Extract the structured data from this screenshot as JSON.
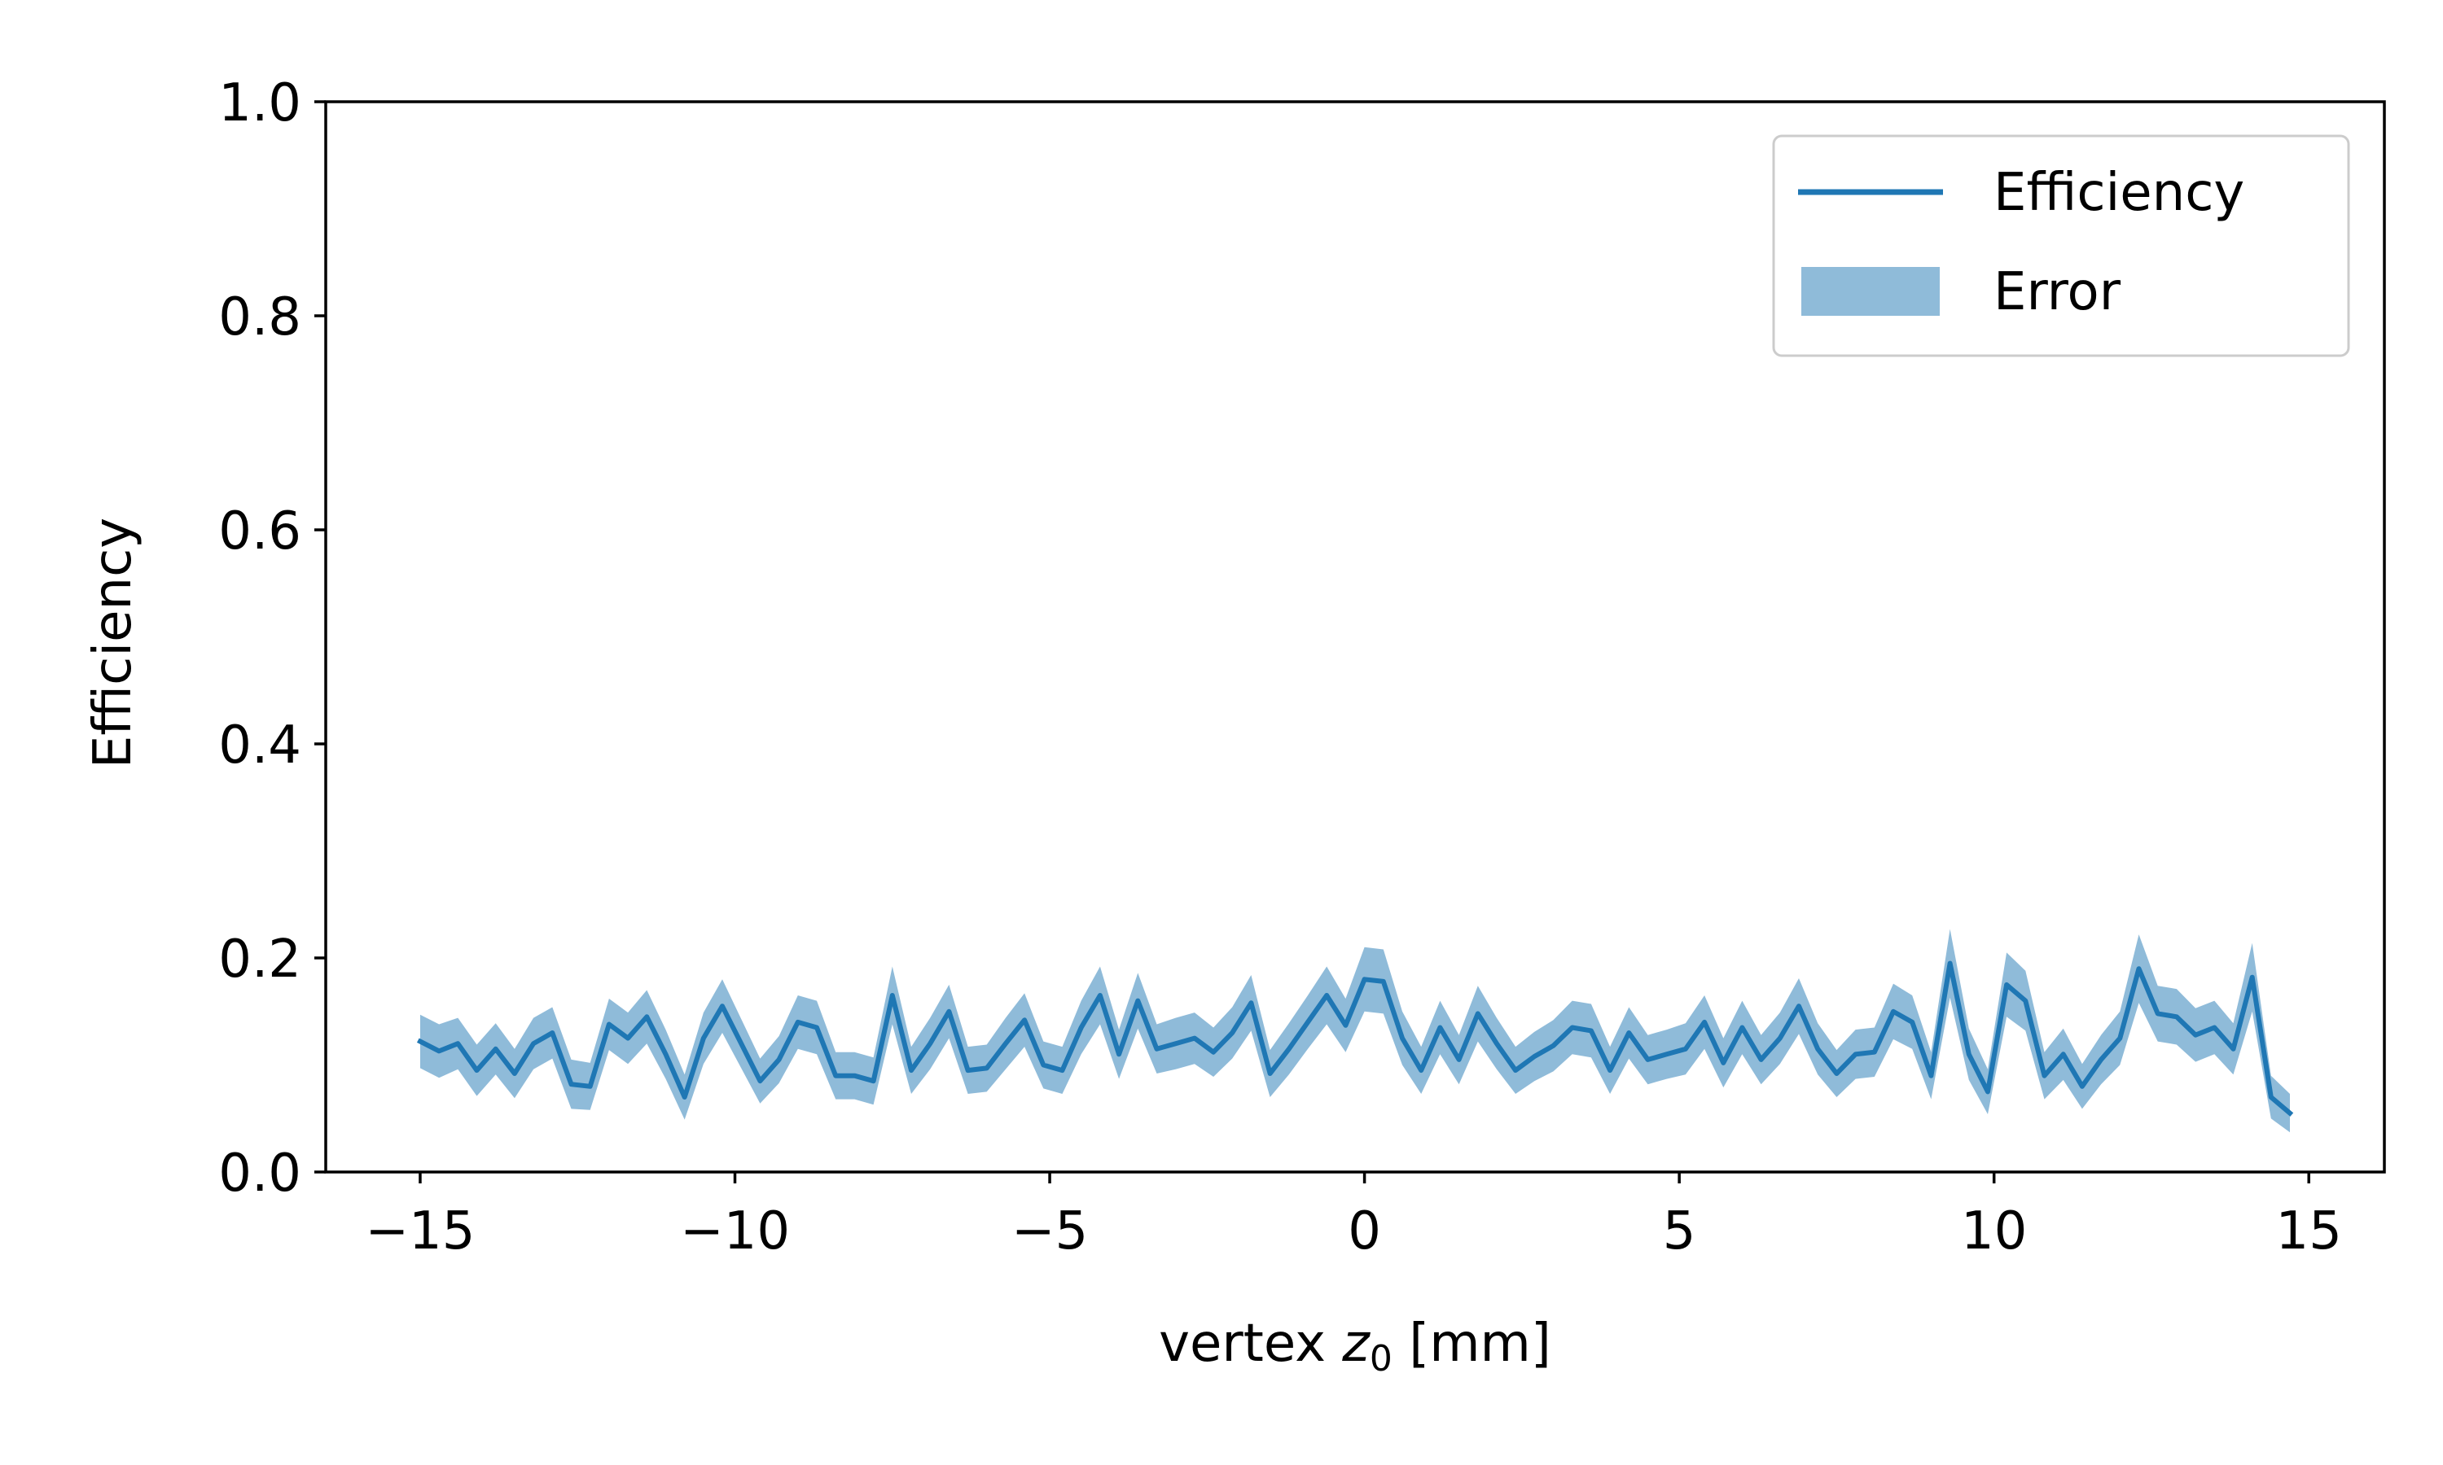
{
  "chart_data": {
    "type": "line",
    "title": "",
    "xlabel_prefix": "vertex ",
    "xlabel_var": "z",
    "xlabel_sub": "0",
    "xlabel_suffix": " [mm]",
    "ylabel": "Efficiency",
    "xlim": [
      -16.5,
      16.2
    ],
    "ylim": [
      0.0,
      1.0
    ],
    "xticks": [
      -15,
      -10,
      -5,
      0,
      5,
      10,
      15
    ],
    "xtick_labels": [
      "−15",
      "−10",
      "−5",
      "0",
      "5",
      "10",
      "15"
    ],
    "yticks": [
      0.0,
      0.2,
      0.4,
      0.6,
      0.8,
      1.0
    ],
    "ytick_labels": [
      "0.0",
      "0.2",
      "0.4",
      "0.6",
      "0.8",
      "1.0"
    ],
    "grid": false,
    "legend_position": "top-right",
    "legend": [
      {
        "label": "Efficiency",
        "kind": "line"
      },
      {
        "label": "Error",
        "kind": "band"
      }
    ],
    "series": [
      {
        "name": "Efficiency",
        "color": "#1f77b4",
        "band_color": "#1f77b4",
        "band_opacity": 0.5,
        "x": [
          -15.0,
          -14.7,
          -14.4,
          -14.1,
          -13.8,
          -13.5,
          -13.2,
          -12.9,
          -12.6,
          -12.3,
          -12.0,
          -11.7,
          -11.4,
          -11.1,
          -10.8,
          -10.5,
          -10.2,
          -9.9,
          -9.6,
          -9.3,
          -9.0,
          -8.7,
          -8.4,
          -8.1,
          -7.8,
          -7.5,
          -7.2,
          -6.9,
          -6.6,
          -6.3,
          -6.0,
          -5.7,
          -5.4,
          -5.1,
          -4.8,
          -4.5,
          -4.2,
          -3.9,
          -3.6,
          -3.3,
          -3.0,
          -2.7,
          -2.4,
          -2.1,
          -1.8,
          -1.5,
          -1.2,
          -0.9,
          -0.6,
          -0.3,
          0.0,
          0.3,
          0.6,
          0.9,
          1.2,
          1.5,
          1.8,
          2.1,
          2.4,
          2.7,
          3.0,
          3.3,
          3.6,
          3.9,
          4.2,
          4.5,
          4.8,
          5.1,
          5.4,
          5.7,
          6.0,
          6.3,
          6.6,
          6.9,
          7.2,
          7.5,
          7.8,
          8.1,
          8.4,
          8.7,
          9.0,
          9.3,
          9.6,
          9.9,
          10.2,
          10.5,
          10.8,
          11.1,
          11.4,
          11.7,
          12.0,
          12.3,
          12.6,
          12.9,
          13.2,
          13.5,
          13.8,
          14.1,
          14.4,
          14.7
        ],
        "values": [
          0.122,
          0.113,
          0.12,
          0.095,
          0.115,
          0.092,
          0.12,
          0.13,
          0.082,
          0.08,
          0.138,
          0.125,
          0.145,
          0.11,
          0.07,
          0.125,
          0.155,
          0.12,
          0.085,
          0.105,
          0.14,
          0.135,
          0.09,
          0.09,
          0.085,
          0.165,
          0.095,
          0.12,
          0.15,
          0.095,
          0.097,
          0.12,
          0.142,
          0.1,
          0.095,
          0.135,
          0.165,
          0.11,
          0.16,
          0.115,
          0.12,
          0.125,
          0.112,
          0.13,
          0.158,
          0.092,
          0.115,
          0.14,
          0.165,
          0.137,
          0.18,
          0.178,
          0.125,
          0.095,
          0.135,
          0.105,
          0.148,
          0.12,
          0.095,
          0.108,
          0.118,
          0.135,
          0.132,
          0.095,
          0.13,
          0.105,
          0.11,
          0.115,
          0.14,
          0.102,
          0.135,
          0.105,
          0.125,
          0.155,
          0.115,
          0.092,
          0.11,
          0.112,
          0.15,
          0.14,
          0.09,
          0.195,
          0.11,
          0.075,
          0.175,
          0.16,
          0.09,
          0.11,
          0.08,
          0.105,
          0.125,
          0.19,
          0.148,
          0.145,
          0.128,
          0.135,
          0.115,
          0.182,
          0.07,
          0.055
        ],
        "errors": [
          0.025,
          0.025,
          0.024,
          0.024,
          0.024,
          0.023,
          0.024,
          0.024,
          0.023,
          0.022,
          0.024,
          0.024,
          0.025,
          0.023,
          0.021,
          0.024,
          0.025,
          0.023,
          0.021,
          0.022,
          0.025,
          0.025,
          0.022,
          0.022,
          0.022,
          0.027,
          0.022,
          0.024,
          0.025,
          0.022,
          0.022,
          0.024,
          0.025,
          0.022,
          0.022,
          0.025,
          0.027,
          0.023,
          0.026,
          0.023,
          0.024,
          0.024,
          0.023,
          0.024,
          0.026,
          0.022,
          0.024,
          0.025,
          0.027,
          0.025,
          0.03,
          0.03,
          0.025,
          0.022,
          0.025,
          0.023,
          0.026,
          0.024,
          0.022,
          0.023,
          0.024,
          0.025,
          0.025,
          0.022,
          0.024,
          0.023,
          0.023,
          0.024,
          0.025,
          0.023,
          0.025,
          0.023,
          0.024,
          0.026,
          0.024,
          0.022,
          0.023,
          0.023,
          0.026,
          0.025,
          0.022,
          0.032,
          0.024,
          0.021,
          0.03,
          0.028,
          0.022,
          0.024,
          0.021,
          0.023,
          0.025,
          0.032,
          0.026,
          0.026,
          0.025,
          0.025,
          0.024,
          0.032,
          0.02,
          0.018
        ]
      }
    ]
  }
}
